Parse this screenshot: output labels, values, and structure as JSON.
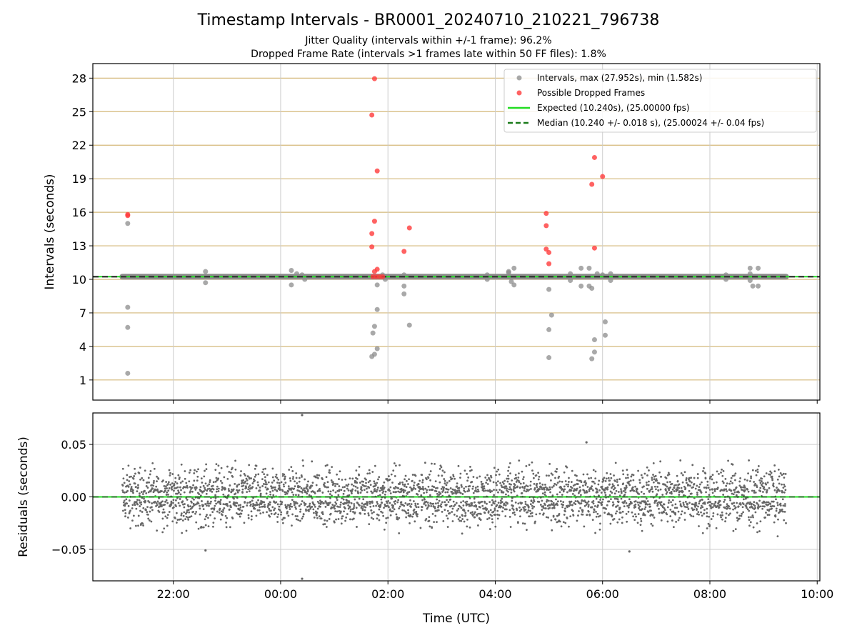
{
  "figure": {
    "title": "Timestamp Intervals - BR0001_20240710_210221_796738",
    "subtitle1": "Jitter Quality (intervals within +/-1 frame): 96.2%",
    "subtitle2": "Dropped Frame Rate (intervals >1 frames late within 50 FF files): 1.8%"
  },
  "colors": {
    "intervals": "#8c8c8c",
    "dropped": "#ff3b3b",
    "expected": "#22dd22",
    "median": "#1a7a1a",
    "grid_top": "#d4b87a",
    "grid": "#cccccc",
    "residuals": "#666666"
  },
  "chart_data": [
    {
      "type": "scatter",
      "xlabel": "",
      "ylabel": "Intervals (seconds)",
      "ylim": [
        -0.8,
        29.3
      ],
      "yticks": [
        1,
        4,
        7,
        10,
        13,
        16,
        19,
        22,
        25,
        28
      ],
      "xlim_hours": [
        20.5,
        34.05
      ],
      "grid": "both",
      "legend_placement": "top-right",
      "legend": [
        {
          "label": "Intervals, max (27.952s), min (1.582s)",
          "marker": "dot-gray"
        },
        {
          "label": "Possible Dropped Frames",
          "marker": "dot-red"
        },
        {
          "label": "Expected (10.240s), (25.00000 fps)",
          "marker": "solid-green"
        },
        {
          "label": "Median (10.240 +/- 0.018 s), (25.00024 +/- 0.04 fps)",
          "marker": "dashed-darkgreen"
        }
      ],
      "expected_value": 10.24,
      "median_value": 10.24,
      "baseline_range_hours": [
        21.05,
        33.42
      ],
      "intervals_points": [
        [
          21.15,
          15.0
        ],
        [
          21.15,
          7.5
        ],
        [
          21.15,
          5.7
        ],
        [
          21.15,
          1.6
        ],
        [
          22.6,
          10.7
        ],
        [
          22.6,
          9.7
        ],
        [
          24.2,
          10.8
        ],
        [
          24.2,
          9.5
        ],
        [
          24.3,
          10.5
        ],
        [
          24.4,
          10.4
        ],
        [
          24.45,
          10.0
        ],
        [
          25.8,
          9.5
        ],
        [
          25.75,
          3.3
        ],
        [
          25.7,
          3.1
        ],
        [
          25.72,
          5.2
        ],
        [
          25.75,
          5.8
        ],
        [
          25.8,
          7.3
        ],
        [
          25.8,
          3.8
        ],
        [
          25.9,
          10.4
        ],
        [
          25.95,
          10.0
        ],
        [
          26.3,
          10.4
        ],
        [
          26.3,
          9.4
        ],
        [
          26.3,
          8.7
        ],
        [
          26.4,
          5.9
        ],
        [
          27.85,
          10.4
        ],
        [
          27.85,
          10.0
        ],
        [
          28.25,
          10.7
        ],
        [
          28.25,
          10.6
        ],
        [
          28.3,
          9.8
        ],
        [
          28.35,
          11.0
        ],
        [
          28.35,
          9.5
        ],
        [
          29.0,
          9.1
        ],
        [
          29.0,
          5.5
        ],
        [
          29.0,
          3.0
        ],
        [
          29.05,
          6.8
        ],
        [
          29.4,
          10.5
        ],
        [
          29.4,
          9.9
        ],
        [
          29.6,
          11.0
        ],
        [
          29.6,
          9.4
        ],
        [
          29.75,
          11.0
        ],
        [
          29.75,
          9.4
        ],
        [
          29.8,
          9.2
        ],
        [
          29.85,
          4.6
        ],
        [
          29.85,
          3.5
        ],
        [
          29.8,
          2.9
        ],
        [
          29.9,
          10.5
        ],
        [
          30.0,
          10.4
        ],
        [
          30.05,
          6.2
        ],
        [
          30.05,
          5.0
        ],
        [
          30.15,
          10.5
        ],
        [
          30.15,
          9.9
        ],
        [
          32.3,
          10.4
        ],
        [
          32.3,
          10.0
        ],
        [
          32.75,
          11.0
        ],
        [
          32.75,
          10.5
        ],
        [
          32.75,
          9.9
        ],
        [
          32.8,
          9.4
        ],
        [
          32.9,
          11.0
        ],
        [
          32.9,
          9.4
        ]
      ],
      "dropped_points": [
        [
          21.15,
          15.8
        ],
        [
          21.15,
          15.7
        ],
        [
          25.7,
          24.7
        ],
        [
          25.75,
          27.95
        ],
        [
          25.8,
          19.7
        ],
        [
          25.75,
          15.2
        ],
        [
          25.7,
          14.1
        ],
        [
          25.7,
          12.9
        ],
        [
          25.75,
          10.7
        ],
        [
          25.8,
          10.9
        ],
        [
          25.72,
          10.24
        ],
        [
          25.78,
          10.24
        ],
        [
          25.84,
          10.24
        ],
        [
          25.9,
          10.24
        ],
        [
          26.3,
          12.5
        ],
        [
          26.4,
          14.6
        ],
        [
          28.95,
          15.9
        ],
        [
          28.95,
          14.8
        ],
        [
          28.95,
          12.7
        ],
        [
          29.0,
          12.4
        ],
        [
          29.0,
          11.4
        ],
        [
          29.8,
          18.5
        ],
        [
          29.85,
          20.9
        ],
        [
          29.85,
          12.8
        ],
        [
          30.0,
          19.2
        ]
      ]
    },
    {
      "type": "scatter",
      "xlabel": "Time (UTC)",
      "ylabel": "Residuals (seconds)",
      "ylim": [
        -0.08,
        0.08
      ],
      "yticks": [
        0.05,
        0.0,
        -0.05
      ],
      "ytick_labels": [
        "0.05",
        "0.00",
        "−0.05"
      ],
      "xticks_hours": [
        22,
        24,
        26,
        28,
        30,
        32,
        34
      ],
      "xtick_labels": [
        "22:00",
        "00:00",
        "02:00",
        "04:00",
        "06:00",
        "08:00",
        "10:00"
      ],
      "xlim_hours": [
        20.5,
        34.05
      ],
      "grid": "both",
      "residual_range_hours": [
        21.05,
        33.42
      ],
      "residual_spread": 0.04,
      "outliers": [
        [
          24.4,
          0.078
        ],
        [
          24.4,
          -0.078
        ],
        [
          22.6,
          -0.051
        ],
        [
          29.7,
          0.052
        ],
        [
          30.5,
          -0.052
        ]
      ]
    }
  ]
}
